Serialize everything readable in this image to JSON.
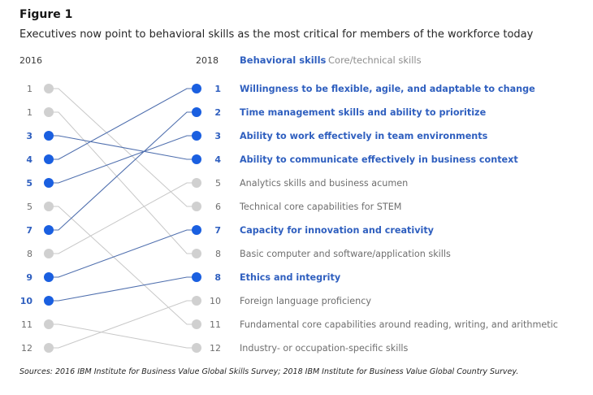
{
  "title": "Figure 1",
  "subtitle": "Executives now point to behavioral skills as the most critical for members of the workforce today",
  "source": "Sources: 2016 IBM Institute for Business Value Global Skills Survey; 2018 IBM Institute for Business Value Global Country Survey.",
  "colors": {
    "behavioral": "#1a5fe0",
    "behavioral_text": "#2f5fbf",
    "behavioral_line": "#4f6fae",
    "core": "#d0d0d0",
    "core_text": "#6f6f6f",
    "core_line": "#c8c8c8"
  },
  "chart_data": {
    "type": "slope",
    "title": "Figure 1",
    "left_label": "2016",
    "right_label": "2018",
    "legend": [
      "Behavioral skills",
      "Core/technical skills"
    ],
    "left_ranks": [
      {
        "rank": "1",
        "links_to": 5,
        "type": "core"
      },
      {
        "rank": "1",
        "links_to": 7,
        "type": "core"
      },
      {
        "rank": "3",
        "links_to": 3,
        "type": "behavioral"
      },
      {
        "rank": "4",
        "links_to": 0,
        "type": "behavioral"
      },
      {
        "rank": "5",
        "links_to": 2,
        "type": "behavioral"
      },
      {
        "rank": "5",
        "links_to": 10,
        "type": "core"
      },
      {
        "rank": "7",
        "links_to": 1,
        "type": "behavioral"
      },
      {
        "rank": "8",
        "links_to": 4,
        "type": "core"
      },
      {
        "rank": "9",
        "links_to": 6,
        "type": "behavioral"
      },
      {
        "rank": "10",
        "links_to": 8,
        "type": "behavioral"
      },
      {
        "rank": "11",
        "links_to": 11,
        "type": "core"
      },
      {
        "rank": "12",
        "links_to": 9,
        "type": "core"
      }
    ],
    "right_ranks": [
      {
        "rank": "1",
        "skill": "Willingness to be flexible, agile, and adaptable to change",
        "type": "behavioral"
      },
      {
        "rank": "2",
        "skill": "Time management skills and ability to prioritize",
        "type": "behavioral"
      },
      {
        "rank": "3",
        "skill": "Ability to work effectively in team environments",
        "type": "behavioral"
      },
      {
        "rank": "4",
        "skill": "Ability to communicate effectively in business context",
        "type": "behavioral"
      },
      {
        "rank": "5",
        "skill": "Analytics skills and business acumen",
        "type": "core"
      },
      {
        "rank": "6",
        "skill": "Technical core capabilities for STEM",
        "type": "core"
      },
      {
        "rank": "7",
        "skill": "Capacity for innovation and creativity",
        "type": "behavioral"
      },
      {
        "rank": "8",
        "skill": "Basic computer and software/application skills",
        "type": "core"
      },
      {
        "rank": "8",
        "skill": "Ethics and integrity",
        "type": "behavioral"
      },
      {
        "rank": "10",
        "skill": "Foreign language proficiency",
        "type": "core"
      },
      {
        "rank": "11",
        "skill": "Fundamental core capabilities around reading, writing, and arithmetic",
        "type": "core"
      },
      {
        "rank": "12",
        "skill": "Industry- or occupation-specific skills",
        "type": "core"
      }
    ]
  }
}
